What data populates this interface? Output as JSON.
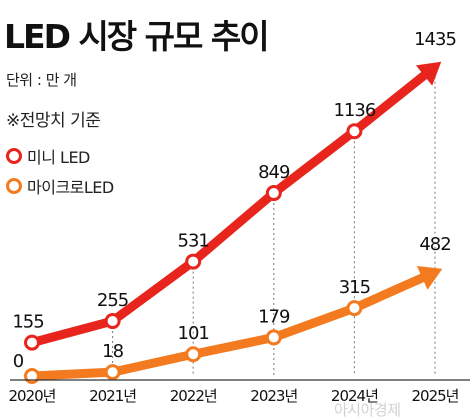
{
  "title": "LED 시장 규모 추이",
  "unit": "단위 : 만 개",
  "note": "※전망치 기준",
  "watermark": "아시아경제",
  "colors": {
    "red": "#e8251d",
    "orange": "#f47a1f"
  },
  "chart_data": {
    "type": "line",
    "title": "LED 시장 규모 추이",
    "x": [
      "2020년",
      "2021년",
      "2022년",
      "2023년",
      "2024년",
      "2025년"
    ],
    "series": [
      {
        "name": "미니 LED",
        "color": "#e8251d",
        "values": [
          155,
          255,
          531,
          849,
          1136,
          1435
        ]
      },
      {
        "name": "마이크로LED",
        "color": "#f47a1f",
        "values": [
          0,
          18,
          101,
          179,
          315,
          482
        ]
      }
    ],
    "xlabel": "",
    "ylabel": "",
    "legend": "left",
    "grid": false,
    "data_labels": true
  }
}
